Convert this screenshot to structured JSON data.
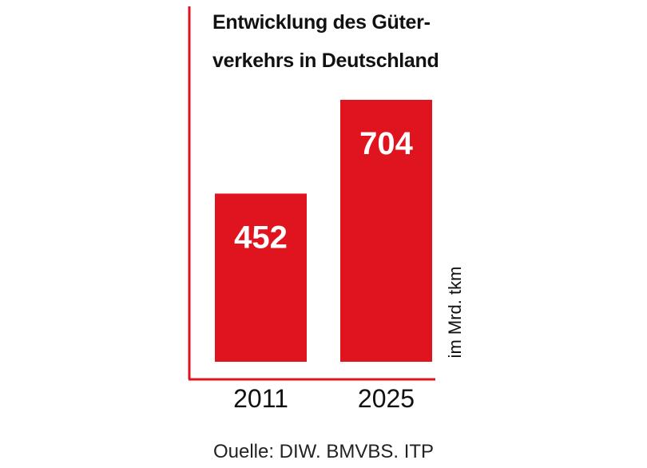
{
  "chart_data": {
    "type": "bar",
    "title_lines": [
      "Entwicklung des Güter-",
      "verkehrs in Deutschland"
    ],
    "categories": [
      "2011",
      "2025"
    ],
    "values": [
      452,
      704
    ],
    "value_labels": [
      "452",
      "704"
    ],
    "ylabel": "im Mrd. tkm",
    "ylim": [
      0,
      704
    ],
    "grid": false,
    "legend": "none",
    "bar_color": "#e0141f",
    "axis_color": "#e0141f",
    "value_label_color": "#ffffff"
  },
  "source": "Ouelle: DIW. BMVBS. ITP"
}
